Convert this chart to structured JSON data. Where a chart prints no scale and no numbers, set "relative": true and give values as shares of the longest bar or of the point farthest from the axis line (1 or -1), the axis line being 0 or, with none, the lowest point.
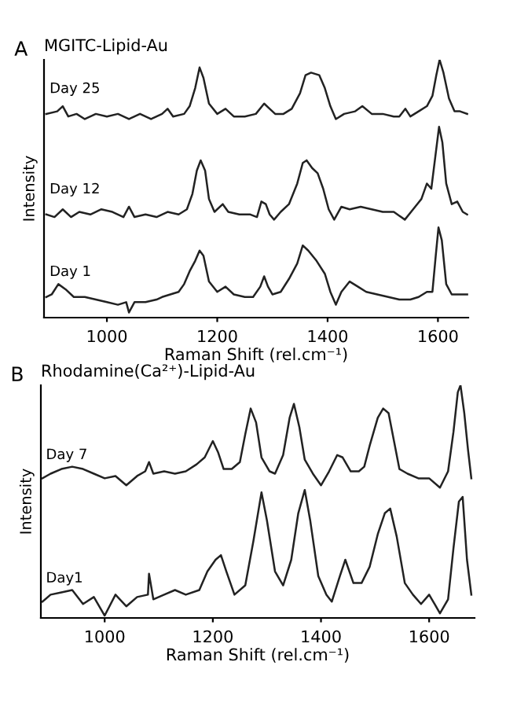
{
  "chart_data": [
    {
      "type": "line",
      "title": "MGITC-Lipid-Au",
      "annotations": [
        "A"
      ],
      "xlabel": "Raman Shift (rel.cm⁻¹)",
      "ylabel": "Intensity",
      "relative": true,
      "xlim": [
        886,
        1655
      ],
      "xticks": [
        1000,
        1200,
        1400,
        1600
      ],
      "grid": false,
      "legend": false,
      "marker": "none",
      "line_style": "solid",
      "series": [
        {
          "name": "Day 25",
          "color": "#222222",
          "x": [
            890,
            910,
            920,
            930,
            945,
            960,
            980,
            1000,
            1020,
            1040,
            1060,
            1080,
            1100,
            1110,
            1120,
            1140,
            1150,
            1160,
            1168,
            1175,
            1185,
            1200,
            1215,
            1230,
            1250,
            1270,
            1285,
            1295,
            1305,
            1320,
            1335,
            1350,
            1360,
            1370,
            1385,
            1395,
            1405,
            1415,
            1430,
            1450,
            1463,
            1480,
            1500,
            1520,
            1530,
            1541,
            1550,
            1565,
            1580,
            1590,
            1597,
            1603,
            1610,
            1620,
            1630,
            1640,
            1653
          ],
          "values": [
            0.79,
            0.8,
            0.82,
            0.78,
            0.79,
            0.77,
            0.79,
            0.78,
            0.79,
            0.77,
            0.79,
            0.77,
            0.79,
            0.81,
            0.78,
            0.79,
            0.82,
            0.89,
            0.97,
            0.93,
            0.83,
            0.79,
            0.81,
            0.78,
            0.78,
            0.79,
            0.83,
            0.81,
            0.79,
            0.79,
            0.81,
            0.87,
            0.94,
            0.95,
            0.94,
            0.89,
            0.82,
            0.77,
            0.79,
            0.8,
            0.82,
            0.79,
            0.79,
            0.78,
            0.78,
            0.81,
            0.78,
            0.8,
            0.82,
            0.86,
            0.94,
            1.0,
            0.95,
            0.85,
            0.8,
            0.8,
            0.79
          ]
        },
        {
          "name": "Day 12",
          "color": "#222222",
          "x": [
            890,
            905,
            920,
            935,
            950,
            970,
            990,
            1010,
            1030,
            1040,
            1050,
            1070,
            1090,
            1110,
            1130,
            1145,
            1155,
            1163,
            1170,
            1178,
            1185,
            1195,
            1210,
            1220,
            1240,
            1260,
            1272,
            1280,
            1288,
            1295,
            1303,
            1315,
            1330,
            1345,
            1355,
            1362,
            1372,
            1382,
            1392,
            1402,
            1412,
            1425,
            1440,
            1460,
            1480,
            1500,
            1520,
            1540,
            1555,
            1570,
            1580,
            1588,
            1595,
            1602,
            1608,
            1615,
            1625,
            1635,
            1645,
            1653
          ],
          "values": [
            0.4,
            0.39,
            0.42,
            0.39,
            0.41,
            0.4,
            0.42,
            0.41,
            0.39,
            0.43,
            0.39,
            0.4,
            0.39,
            0.41,
            0.4,
            0.42,
            0.48,
            0.57,
            0.61,
            0.57,
            0.46,
            0.41,
            0.44,
            0.41,
            0.4,
            0.4,
            0.39,
            0.45,
            0.44,
            0.4,
            0.38,
            0.41,
            0.44,
            0.52,
            0.6,
            0.61,
            0.58,
            0.56,
            0.5,
            0.42,
            0.38,
            0.43,
            0.42,
            0.43,
            0.42,
            0.41,
            0.41,
            0.38,
            0.42,
            0.46,
            0.52,
            0.5,
            0.62,
            0.74,
            0.68,
            0.52,
            0.44,
            0.45,
            0.41,
            0.4
          ]
        },
        {
          "name": "Day 1",
          "color": "#222222",
          "x": [
            890,
            900,
            912,
            925,
            940,
            960,
            980,
            1000,
            1020,
            1035,
            1040,
            1050,
            1070,
            1090,
            1100,
            1115,
            1130,
            1140,
            1150,
            1160,
            1168,
            1175,
            1185,
            1200,
            1215,
            1230,
            1250,
            1265,
            1278,
            1285,
            1292,
            1300,
            1315,
            1330,
            1345,
            1355,
            1365,
            1380,
            1395,
            1405,
            1415,
            1425,
            1440,
            1455,
            1470,
            1490,
            1510,
            1530,
            1550,
            1565,
            1580,
            1590,
            1596,
            1601,
            1607,
            1615,
            1625,
            1640,
            1653
          ],
          "values": [
            0.08,
            0.09,
            0.13,
            0.11,
            0.08,
            0.08,
            0.07,
            0.06,
            0.05,
            0.06,
            0.02,
            0.06,
            0.06,
            0.07,
            0.08,
            0.09,
            0.1,
            0.13,
            0.18,
            0.22,
            0.26,
            0.24,
            0.14,
            0.1,
            0.12,
            0.09,
            0.08,
            0.08,
            0.12,
            0.16,
            0.12,
            0.09,
            0.1,
            0.15,
            0.21,
            0.28,
            0.26,
            0.22,
            0.17,
            0.1,
            0.05,
            0.1,
            0.14,
            0.12,
            0.1,
            0.09,
            0.08,
            0.07,
            0.07,
            0.08,
            0.1,
            0.1,
            0.24,
            0.35,
            0.3,
            0.13,
            0.09,
            0.09,
            0.09
          ]
        }
      ]
    },
    {
      "type": "line",
      "title": "Rhodamine(Ca²⁺)-Lipid-Au",
      "annotations": [
        "B"
      ],
      "xlabel": "Raman Shift (rel.cm⁻¹)",
      "ylabel": "Intensity",
      "relative": true,
      "xlim": [
        882,
        1684
      ],
      "xticks": [
        1000,
        1200,
        1400,
        1600
      ],
      "grid": false,
      "legend": false,
      "marker": "none",
      "line_style": "solid",
      "series": [
        {
          "name": "Day 7",
          "color": "#222222",
          "x": [
            885,
            900,
            920,
            940,
            960,
            980,
            1000,
            1020,
            1040,
            1060,
            1075,
            1082,
            1090,
            1110,
            1130,
            1150,
            1170,
            1185,
            1200,
            1210,
            1220,
            1235,
            1250,
            1260,
            1270,
            1280,
            1290,
            1305,
            1315,
            1330,
            1342,
            1350,
            1360,
            1370,
            1385,
            1400,
            1415,
            1430,
            1440,
            1455,
            1470,
            1480,
            1490,
            1505,
            1515,
            1525,
            1535,
            1545,
            1560,
            1580,
            1600,
            1620,
            1635,
            1645,
            1653,
            1658,
            1665,
            1672,
            1678
          ],
          "values": [
            0.6,
            0.62,
            0.64,
            0.65,
            0.64,
            0.62,
            0.6,
            0.61,
            0.57,
            0.61,
            0.63,
            0.67,
            0.62,
            0.63,
            0.62,
            0.63,
            0.66,
            0.69,
            0.76,
            0.71,
            0.64,
            0.64,
            0.67,
            0.79,
            0.9,
            0.84,
            0.69,
            0.63,
            0.62,
            0.7,
            0.86,
            0.92,
            0.82,
            0.68,
            0.62,
            0.57,
            0.63,
            0.7,
            0.69,
            0.63,
            0.63,
            0.65,
            0.74,
            0.86,
            0.9,
            0.88,
            0.76,
            0.64,
            0.62,
            0.6,
            0.6,
            0.56,
            0.63,
            0.8,
            0.97,
            1.0,
            0.88,
            0.72,
            0.6
          ]
        },
        {
          "name": "Day1",
          "color": "#222222",
          "x": [
            885,
            900,
            920,
            940,
            960,
            980,
            1000,
            1020,
            1040,
            1060,
            1080,
            1082,
            1090,
            1110,
            1130,
            1150,
            1175,
            1190,
            1205,
            1215,
            1225,
            1240,
            1260,
            1275,
            1290,
            1300,
            1315,
            1330,
            1345,
            1358,
            1370,
            1380,
            1395,
            1410,
            1420,
            1435,
            1445,
            1460,
            1475,
            1490,
            1505,
            1518,
            1528,
            1540,
            1555,
            1570,
            1585,
            1600,
            1610,
            1620,
            1635,
            1645,
            1655,
            1662,
            1670,
            1678
          ],
          "values": [
            0.07,
            0.1,
            0.11,
            0.12,
            0.06,
            0.09,
            0.01,
            0.1,
            0.05,
            0.09,
            0.1,
            0.19,
            0.08,
            0.1,
            0.12,
            0.1,
            0.12,
            0.2,
            0.25,
            0.27,
            0.2,
            0.1,
            0.14,
            0.33,
            0.54,
            0.42,
            0.2,
            0.14,
            0.25,
            0.45,
            0.55,
            0.42,
            0.18,
            0.1,
            0.07,
            0.18,
            0.25,
            0.15,
            0.15,
            0.22,
            0.36,
            0.45,
            0.47,
            0.35,
            0.15,
            0.1,
            0.06,
            0.1,
            0.06,
            0.02,
            0.08,
            0.3,
            0.5,
            0.52,
            0.25,
            0.1
          ]
        }
      ]
    }
  ]
}
